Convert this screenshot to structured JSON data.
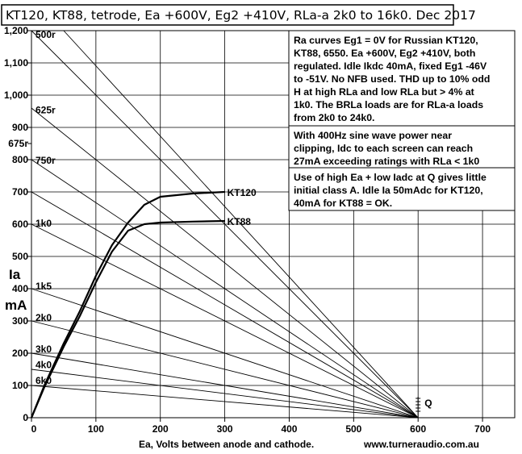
{
  "title": "KT120, KT88, tetrode, Ea +600V, Eg2 +410V, RLa-a 2k0 to 16k0. Dec 2017",
  "notes": [
    [
      "Ra curves Eg1 = 0V for Russian KT120,",
      "KT88, 6550. Ea +600V, Eg2 +410V, both",
      "regulated. Idle Ikdc 40mA, fixed Eg1 -46V",
      "to -51V. No NFB used. THD up to 10% odd",
      "H at high RLa and low RLa but > 4% at",
      "1k0. The BRLa loads are for RLa-a loads",
      "from 2k0 to 24k0."
    ],
    [
      "With 400Hz sine wave power near",
      "clipping, Idc to each screen can reach",
      "27mA exceeding ratings with RLa < 1k0"
    ],
    [
      "Use of high Ea + low Iadc at Q gives little",
      "initial class A. Idle Ia 50mAdc for KT120,",
      "40mA for KT88 = OK."
    ]
  ],
  "chart_data": {
    "type": "line",
    "title": "KT120, KT88, tetrode, Ea +600V, Eg2 +410V, RLa-a 2k0 to 16k0. Dec 2017",
    "xlabel": "Ea, Volts between anode and cathode.",
    "ylabel": [
      "Ia",
      "mA"
    ],
    "xlim": [
      0,
      750
    ],
    "ylim": [
      0,
      1200
    ],
    "grid": true,
    "x_ticks": [
      "0",
      "100",
      "200",
      "300",
      "400",
      "500",
      "600",
      "700"
    ],
    "x_tick_values": [
      0,
      100,
      200,
      300,
      400,
      500,
      600,
      700
    ],
    "y_ticks": [
      "0",
      "100",
      "200",
      "300",
      "400",
      "500",
      "600",
      "700",
      "800",
      "900",
      "1,000",
      "1,100",
      "1,200"
    ],
    "y_tick_values": [
      0,
      100,
      200,
      300,
      400,
      500,
      600,
      700,
      800,
      900,
      1000,
      1100,
      1200
    ],
    "y_extra_tick": {
      "label": "675r",
      "value": 850
    },
    "q_point": {
      "label": "Q",
      "x": 600,
      "y": 0
    },
    "series": [
      {
        "name": "KT120",
        "x": [
          0,
          20,
          50,
          75,
          100,
          125,
          150,
          175,
          200,
          250,
          300
        ],
        "y": [
          0,
          100,
          230,
          330,
          440,
          535,
          605,
          660,
          685,
          695,
          700
        ]
      },
      {
        "name": "KT88",
        "x": [
          0,
          20,
          50,
          75,
          100,
          125,
          150,
          175,
          200,
          250,
          300
        ],
        "y": [
          0,
          95,
          220,
          315,
          420,
          515,
          580,
          600,
          605,
          608,
          610
        ]
      }
    ],
    "load_lines": [
      {
        "label": "500r",
        "x0": 0,
        "y0": 1200
      },
      {
        "label": "625r",
        "x0": 0,
        "y0": 960
      },
      {
        "label": "750r",
        "x0": 0,
        "y0": 800
      },
      {
        "label": "1k0",
        "x0": 0,
        "y0": 600
      },
      {
        "label": "1k5",
        "x0": 0,
        "y0": 400
      },
      {
        "label": "2k0",
        "x0": 0,
        "y0": 300
      },
      {
        "label": "3k0",
        "x0": 0,
        "y0": 200
      },
      {
        "label": "4k0",
        "x0": 0,
        "y0": 150
      },
      {
        "label": "6k0",
        "x0": 0,
        "y0": 100
      },
      {
        "label": "",
        "x0": 50,
        "y0": 1200
      },
      {
        "label": "",
        "x0": 0,
        "y0": 700
      }
    ],
    "load_line_end": {
      "x": 600,
      "y": 0
    }
  },
  "website": "www.turneraudio.com.au"
}
